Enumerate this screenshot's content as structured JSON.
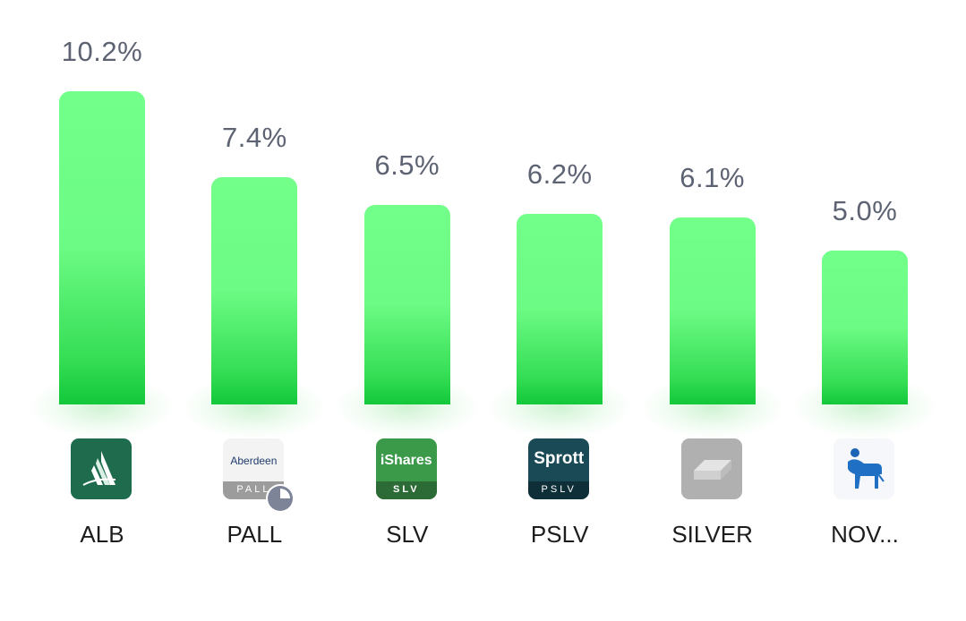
{
  "chart_data": {
    "type": "bar",
    "categories": [
      "ALB",
      "PALL",
      "SLV",
      "PSLV",
      "SILVER",
      "NOV..."
    ],
    "values": [
      10.2,
      7.4,
      6.5,
      6.2,
      6.1,
      5.0
    ],
    "value_labels": [
      "10.2%",
      "7.4%",
      "6.5%",
      "6.2%",
      "6.1%",
      "5.0%"
    ],
    "title": "",
    "xlabel": "",
    "ylabel": "",
    "ylim": [
      0,
      10.2
    ],
    "grid": false,
    "legend": "none",
    "colors": {
      "bar_top": "#72ff8a",
      "bar_bottom": "#13c83a",
      "value_label": "#5d6373",
      "ticker": "#1c1c1c"
    }
  },
  "logos": [
    {
      "name": "albemarle-logo-icon",
      "bg": "#1e6b4e"
    },
    {
      "name": "aberdeen-pall-logo-icon",
      "text": "Aberdeen",
      "subtext": "PALL",
      "bg": "#f3f3f3",
      "band": "#9c9c9c"
    },
    {
      "name": "ishares-slv-logo-icon",
      "text": "iShares",
      "subtext": "SLV",
      "bg": "#3a9a4a",
      "band": "#2d6b36"
    },
    {
      "name": "sprott-pslv-logo-icon",
      "text": "Sprott",
      "subtext": "PSLV",
      "bg": "#1a4a55",
      "band": "#0f2f38"
    },
    {
      "name": "silver-bar-logo-icon",
      "bg": "#b0b0b0"
    },
    {
      "name": "novo-bull-logo-icon",
      "bg": "#f5f7fa"
    }
  ]
}
